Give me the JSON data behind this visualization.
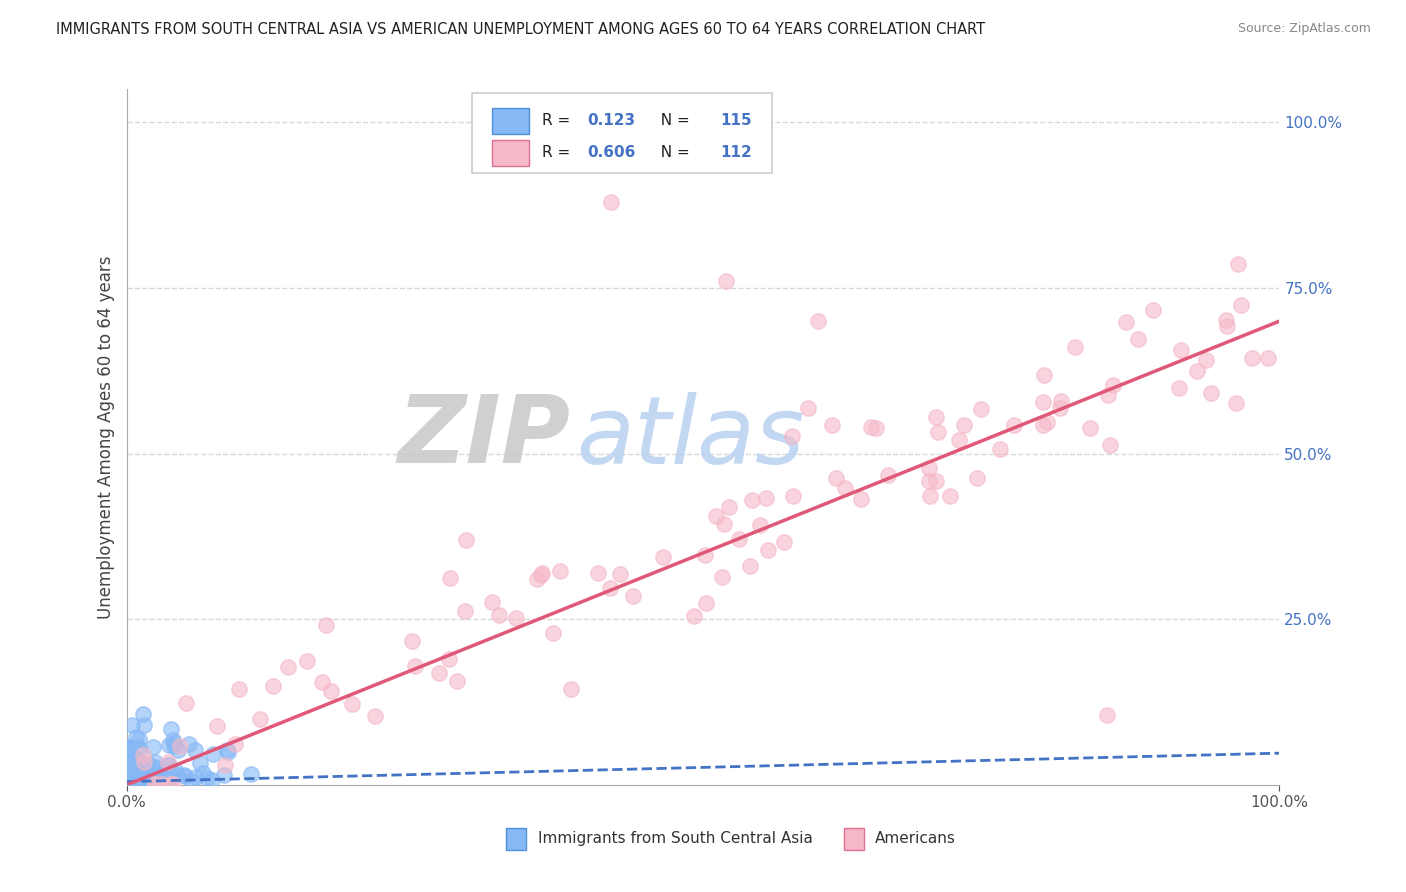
{
  "title": "IMMIGRANTS FROM SOUTH CENTRAL ASIA VS AMERICAN UNEMPLOYMENT AMONG AGES 60 TO 64 YEARS CORRELATION CHART",
  "source": "Source: ZipAtlas.com",
  "ylabel": "Unemployment Among Ages 60 to 64 years",
  "label_blue": "Immigrants from South Central Asia",
  "label_pink": "Americans",
  "right_ytick_vals": [
    0.25,
    0.5,
    0.75,
    1.0
  ],
  "right_ytick_labels": [
    "25.0%",
    "50.0%",
    "75.0%",
    "100.0%"
  ],
  "blue_R": "0.123",
  "blue_N": "115",
  "pink_R": "0.606",
  "pink_N": "112",
  "blue_dot_color": "#85b8f5",
  "blue_dot_edge": "#5090d8",
  "pink_dot_color": "#f5b8c8",
  "pink_dot_edge": "#e07090",
  "blue_line_color": "#4472c4",
  "pink_line_color": "#e05878",
  "watermark_zip_color": "#c8c8c8",
  "watermark_atlas_color": "#b8d0f0",
  "background_color": "#ffffff",
  "grid_color": "#d8d8d8",
  "tick_label_color": "#4472c4",
  "axis_color": "#aaaaaa",
  "legend_border_color": "#cccccc",
  "blue_trend_start": 0.005,
  "blue_trend_end": 0.048,
  "pink_trend_start": 0.0,
  "pink_trend_end": 0.7,
  "xlim": [
    0.0,
    1.0
  ],
  "ylim": [
    0.0,
    1.05
  ],
  "seed": 42
}
